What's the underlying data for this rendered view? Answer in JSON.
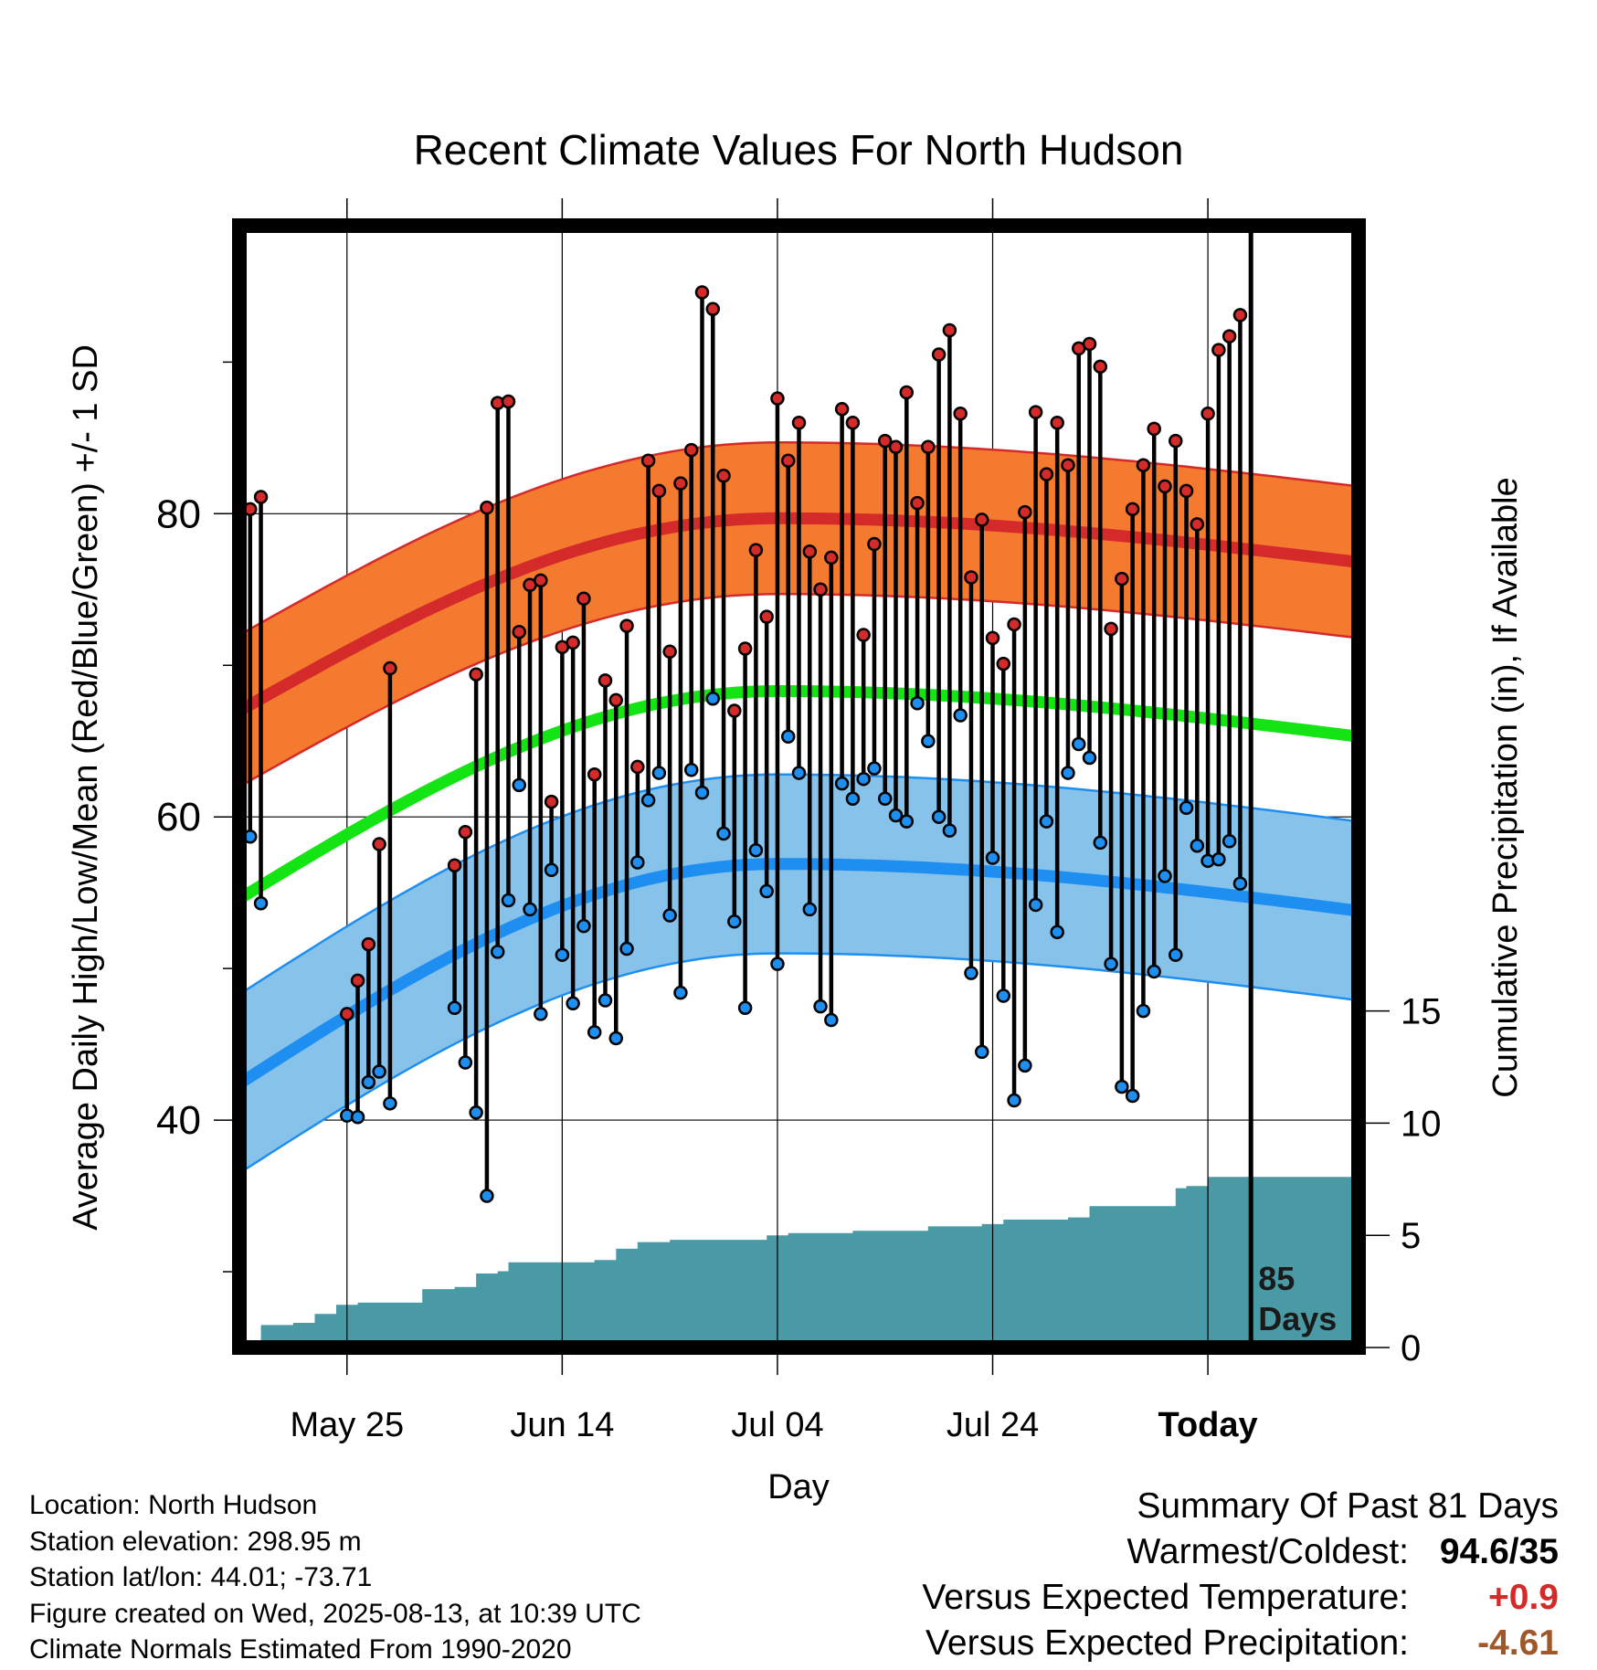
{
  "chart_data": {
    "type": "line",
    "title": "Recent Climate Values For North Hudson",
    "xlabel": "Day",
    "ylabel": "Average Daily High/Low/Mean (Red/Blue/Green) +/- 1 SD",
    "y2label": "Cumulative Precipitation (in), If Available",
    "x_ticks": [
      "May 25",
      "Jun 14",
      "Jul 04",
      "Jul 24",
      "Today"
    ],
    "y_ticks": [
      "40",
      "60",
      "80"
    ],
    "y2_ticks": [
      "0",
      "5",
      "10",
      "15"
    ],
    "ylim": [
      25,
      99
    ],
    "y2lim": [
      0,
      50
    ],
    "x_range_days": [
      -95,
      9
    ],
    "today_label_line1": "85",
    "today_label_line2": "Days",
    "observed_high": [
      80.3,
      81.1,
      null,
      null,
      null,
      null,
      null,
      null,
      null,
      47.0,
      49.2,
      51.6,
      58.2,
      69.8,
      null,
      null,
      null,
      null,
      null,
      56.8,
      59.0,
      69.4,
      80.4,
      87.3,
      87.4,
      72.2,
      75.3,
      75.6,
      61.0,
      71.2,
      71.5,
      74.4,
      62.8,
      69.0,
      67.7,
      72.6,
      63.3,
      83.5,
      81.5,
      70.9,
      82.0,
      84.2,
      94.6,
      93.5,
      82.5,
      67.0,
      71.1,
      77.6,
      73.2,
      87.6,
      83.5,
      86.0,
      77.5,
      75.0,
      77.1,
      86.9,
      86.0,
      72.0,
      78.0,
      84.8,
      84.4,
      88.0,
      80.7,
      84.4,
      90.5,
      92.1,
      86.6,
      75.8,
      79.6,
      71.8,
      70.1,
      72.7,
      80.1,
      86.7,
      82.6,
      86.0,
      83.2,
      90.9,
      91.2,
      89.7,
      72.4,
      75.7,
      80.3,
      83.2,
      85.6,
      81.8,
      84.8,
      81.5,
      79.3,
      86.6,
      90.8,
      91.7,
      93.1
    ],
    "observed_low": [
      58.7,
      54.3,
      null,
      null,
      null,
      null,
      null,
      null,
      null,
      40.3,
      40.2,
      42.5,
      43.2,
      41.1,
      null,
      null,
      null,
      null,
      null,
      47.4,
      43.8,
      40.5,
      35.0,
      51.1,
      54.5,
      62.1,
      53.9,
      47.0,
      56.5,
      50.9,
      47.7,
      52.8,
      45.8,
      47.9,
      45.4,
      51.3,
      57.0,
      61.1,
      62.9,
      53.5,
      48.4,
      63.1,
      61.6,
      67.8,
      58.9,
      53.1,
      47.4,
      57.8,
      55.1,
      50.3,
      65.3,
      62.9,
      53.9,
      47.5,
      46.6,
      62.2,
      61.2,
      62.5,
      63.2,
      61.2,
      60.1,
      59.7,
      67.5,
      65.0,
      60.0,
      59.1,
      66.7,
      49.7,
      44.5,
      57.3,
      48.2,
      41.3,
      43.6,
      54.2,
      59.7,
      52.4,
      62.9,
      64.8,
      63.9,
      58.3,
      50.3,
      42.2,
      41.6,
      47.2,
      49.8,
      56.1,
      50.9,
      60.6,
      58.1,
      57.1,
      57.2,
      58.4,
      55.6
    ],
    "normal_high": {
      "start": 67.0,
      "peak": 79.7,
      "end": 76.8
    },
    "normal_low": {
      "start": 42.4,
      "peak": 56.9,
      "end": 53.8
    },
    "normal_mean": {
      "start": 54.6,
      "peak": 68.3,
      "end": 65.3
    },
    "sd_high": 5.0,
    "sd_low": 5.9,
    "precip_steps": [
      [
        -94,
        0
      ],
      [
        -93,
        1.0
      ],
      [
        -90,
        1.1
      ],
      [
        -88,
        1.5
      ],
      [
        -86,
        1.9
      ],
      [
        -84,
        2.0
      ],
      [
        -79,
        2.0
      ],
      [
        -78,
        2.6
      ],
      [
        -75,
        2.7
      ],
      [
        -73,
        3.3
      ],
      [
        -71,
        3.4
      ],
      [
        -70,
        3.8
      ],
      [
        -67,
        3.8
      ],
      [
        -65,
        3.8
      ],
      [
        -62,
        3.9
      ],
      [
        -60,
        4.4
      ],
      [
        -58,
        4.7
      ],
      [
        -55,
        4.8
      ],
      [
        -52,
        4.8
      ],
      [
        -48,
        4.8
      ],
      [
        -46,
        5.0
      ],
      [
        -44,
        5.1
      ],
      [
        -40,
        5.1
      ],
      [
        -38,
        5.2
      ],
      [
        -33,
        5.2
      ],
      [
        -31,
        5.4
      ],
      [
        -26,
        5.5
      ],
      [
        -24,
        5.7
      ],
      [
        -18,
        5.8
      ],
      [
        -16,
        6.3
      ],
      [
        -9,
        6.3
      ],
      [
        -8,
        7.1
      ],
      [
        -7,
        7.2
      ],
      [
        -5,
        7.6
      ],
      [
        9,
        7.6
      ]
    ],
    "precip_color": "#4a9aa5",
    "high_color": "#d42a2a",
    "high_band_color": "#f47a30",
    "low_color": "#1e8ff0",
    "low_band_color": "#86c2ea",
    "mean_color": "#14e314"
  },
  "footer": {
    "location": "Location: North Hudson",
    "elevation": "Station elevation: 298.95 m",
    "latlon": "Station lat/lon: 44.01; -73.71",
    "created": "Figure created on Wed, 2025-08-13, at 10:39 UTC",
    "normals": "Climate Normals Estimated From 1990-2020"
  },
  "summary": {
    "title": "Summary Of Past 81 Days",
    "warm_cold_label": "Warmest/Coldest:",
    "warm_cold_value": "94.6/35",
    "temp_label": "Versus Expected Temperature:",
    "temp_value": "+0.9",
    "precip_label": "Versus Expected Precipitation:",
    "precip_value": "-4.61"
  }
}
